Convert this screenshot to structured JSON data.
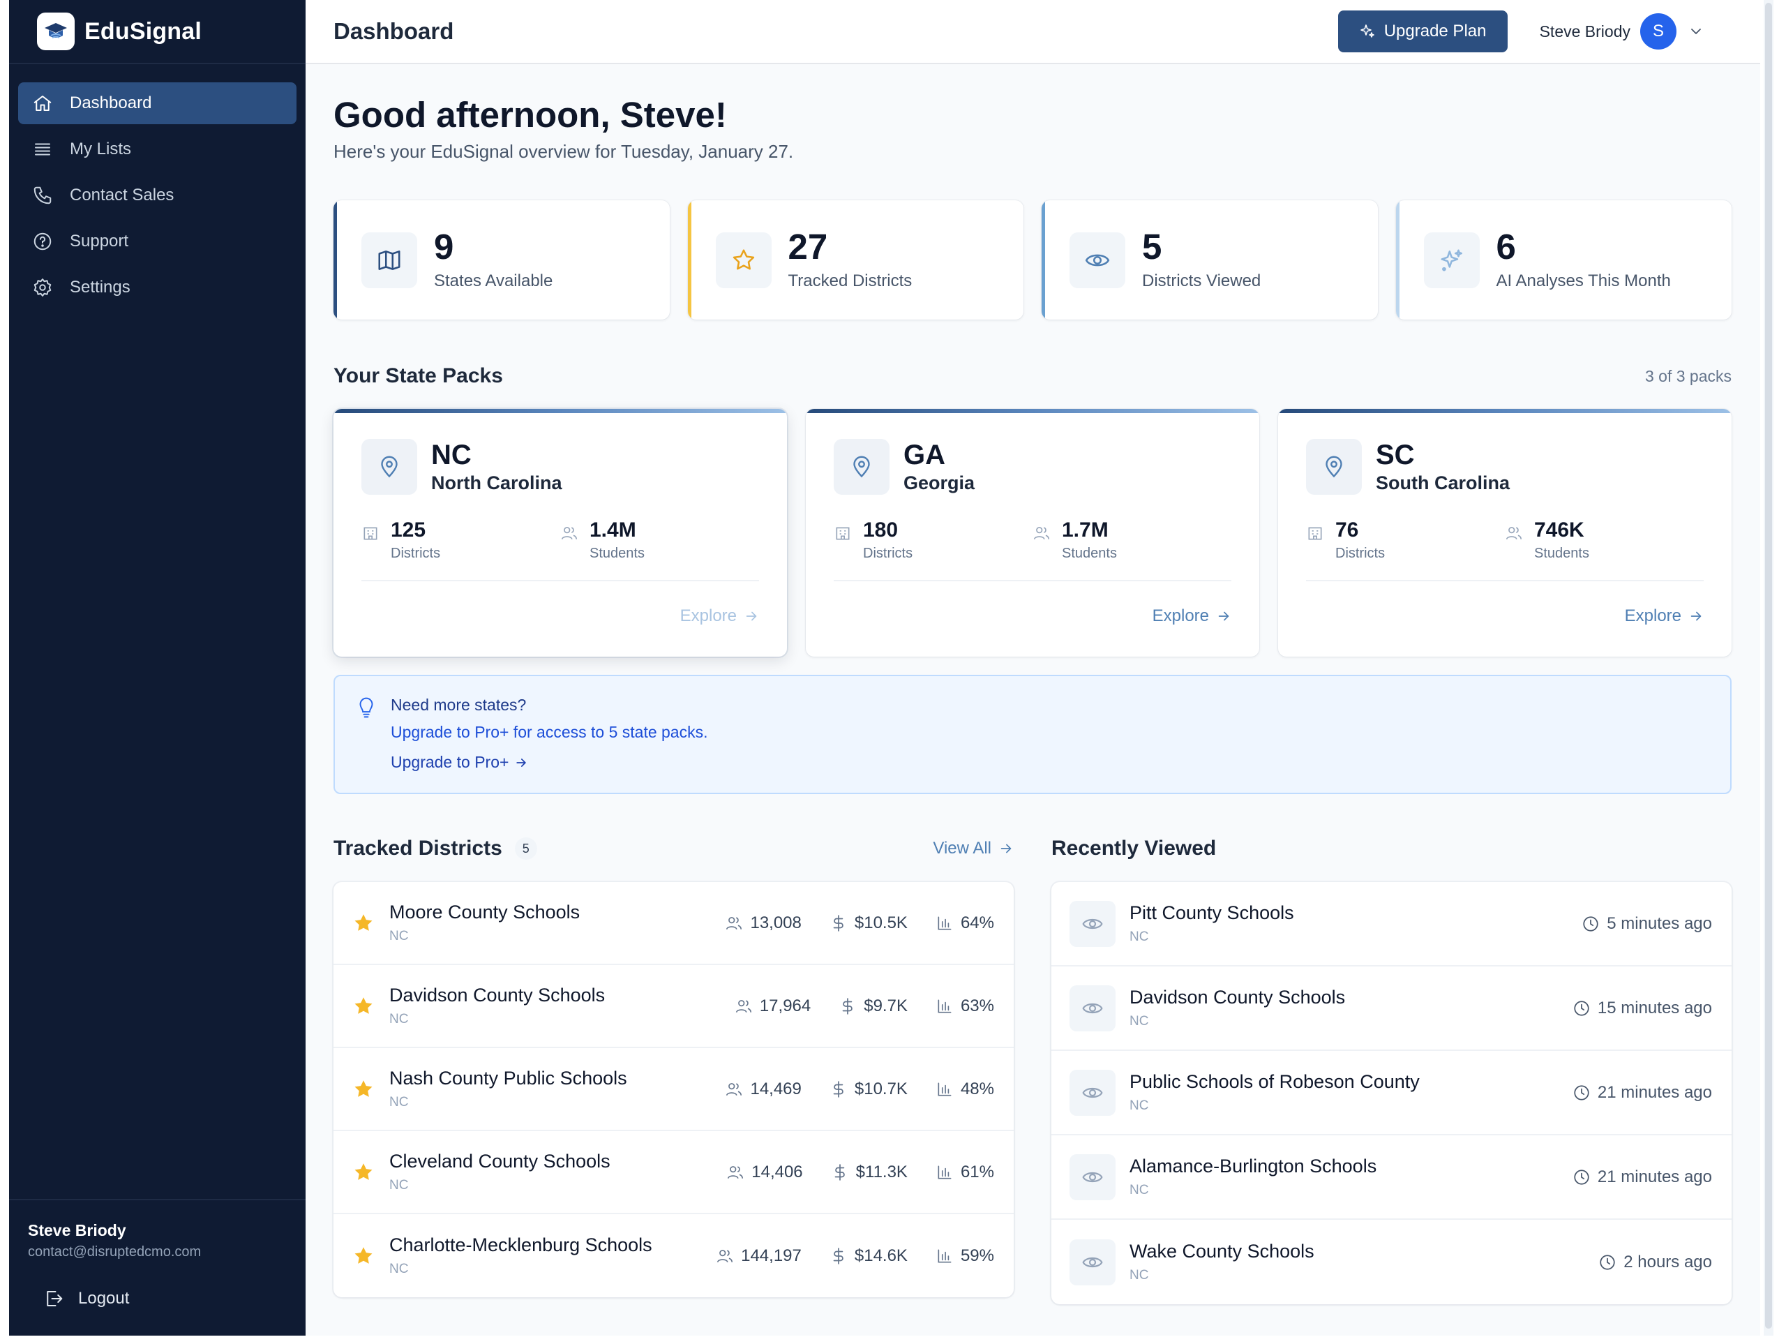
{
  "app": {
    "name": "EduSignal"
  },
  "sidebar": {
    "items": [
      {
        "label": "Dashboard",
        "icon": "home-icon",
        "active": true
      },
      {
        "label": "My Lists",
        "icon": "list-icon"
      },
      {
        "label": "Contact Sales",
        "icon": "phone-icon"
      },
      {
        "label": "Support",
        "icon": "help-circle-icon"
      },
      {
        "label": "Settings",
        "icon": "gear-icon"
      }
    ],
    "user": {
      "name": "Steve Briody",
      "email": "contact@disruptedcmo.com"
    },
    "logout_label": "Logout"
  },
  "header": {
    "title": "Dashboard",
    "upgrade_label": "Upgrade Plan",
    "user_name": "Steve Briody",
    "avatar_initial": "S"
  },
  "greeting": {
    "title": "Good afternoon, Steve!",
    "subtitle": "Here's your EduSignal overview for Tuesday, January 27."
  },
  "stats": [
    {
      "value": "9",
      "label": "States Available",
      "icon": "map-icon",
      "accent": "#2c4f80"
    },
    {
      "value": "27",
      "label": "Tracked Districts",
      "icon": "star-icon",
      "accent": "#f5c542"
    },
    {
      "value": "5",
      "label": "Districts Viewed",
      "icon": "eye-icon",
      "accent": "#6aa0d0"
    },
    {
      "value": "6",
      "label": "AI Analyses This Month",
      "icon": "sparkles-icon",
      "accent": "#bcd6ee"
    }
  ],
  "state_packs": {
    "title": "Your State Packs",
    "meta": "3 of 3 packs",
    "packs": [
      {
        "code": "NC",
        "name": "North Carolina",
        "districts": "125",
        "districts_label": "Districts",
        "students": "1.4M",
        "students_label": "Students",
        "explore_label": "Explore"
      },
      {
        "code": "GA",
        "name": "Georgia",
        "districts": "180",
        "districts_label": "Districts",
        "students": "1.7M",
        "students_label": "Students",
        "explore_label": "Explore"
      },
      {
        "code": "SC",
        "name": "South Carolina",
        "districts": "76",
        "districts_label": "Districts",
        "students": "746K",
        "students_label": "Students",
        "explore_label": "Explore"
      }
    ]
  },
  "banner": {
    "title": "Need more states?",
    "description": "Upgrade to Pro+ for access to 5 state packs.",
    "link_label": "Upgrade to Pro+"
  },
  "tracked": {
    "title": "Tracked Districts",
    "count": "5",
    "view_all_label": "View All",
    "rows": [
      {
        "name": "Moore County Schools",
        "state": "NC",
        "students": "13,008",
        "spend": "$10.5K",
        "pct": "64%"
      },
      {
        "name": "Davidson County Schools",
        "state": "NC",
        "students": "17,964",
        "spend": "$9.7K",
        "pct": "63%"
      },
      {
        "name": "Nash County Public Schools",
        "state": "NC",
        "students": "14,469",
        "spend": "$10.7K",
        "pct": "48%"
      },
      {
        "name": "Cleveland County Schools",
        "state": "NC",
        "students": "14,406",
        "spend": "$11.3K",
        "pct": "61%"
      },
      {
        "name": "Charlotte-Mecklenburg Schools",
        "state": "NC",
        "students": "144,197",
        "spend": "$14.6K",
        "pct": "59%"
      }
    ]
  },
  "recent": {
    "title": "Recently Viewed",
    "rows": [
      {
        "name": "Pitt County Schools",
        "state": "NC",
        "time": "5 minutes ago"
      },
      {
        "name": "Davidson County Schools",
        "state": "NC",
        "time": "15 minutes ago"
      },
      {
        "name": "Public Schools of Robeson County",
        "state": "NC",
        "time": "21 minutes ago"
      },
      {
        "name": "Alamance-Burlington Schools",
        "state": "NC",
        "time": "21 minutes ago"
      },
      {
        "name": "Wake County Schools",
        "state": "NC",
        "time": "2 hours ago"
      }
    ]
  }
}
